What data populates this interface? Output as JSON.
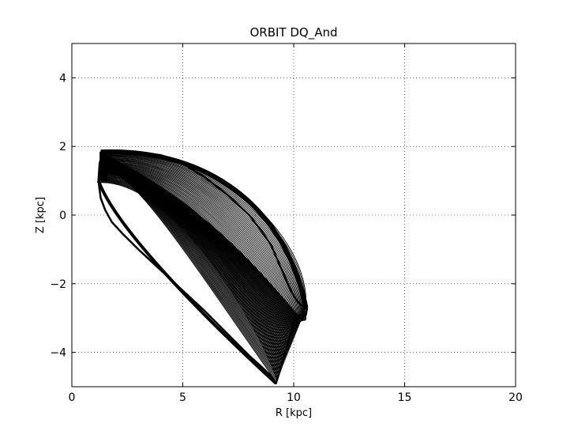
{
  "chart_data": {
    "type": "line",
    "title": "ORBIT DQ_And",
    "xlabel": "R [kpc]",
    "ylabel": "Z [kpc]",
    "xlim": [
      0,
      20
    ],
    "ylim": [
      -5,
      5
    ],
    "xticks": [
      0,
      5,
      10,
      15,
      20
    ],
    "yticks": [
      -4,
      -2,
      0,
      2,
      4
    ],
    "xtick_labels": [
      "0",
      "5",
      "10",
      "15",
      "20"
    ],
    "ytick_labels": [
      "−4",
      "−2",
      "0",
      "2",
      "4"
    ],
    "grid": true,
    "line_color": "#000000",
    "series": [
      {
        "boundary": {
          "x": [
            1.2,
            1.25,
            1.35,
            1.45,
            1.6,
            2.0,
            3.0,
            4.0,
            5.0,
            6.0,
            7.0,
            8.0,
            8.7,
            9.0,
            9.2,
            9.4,
            9.6,
            9.8,
            10.0,
            10.15,
            10.3,
            10.4,
            10.5,
            10.55,
            10.6,
            10.55,
            10.45,
            10.3,
            10.2,
            10.0,
            9.9,
            9.7,
            9.5,
            9.3,
            9.2,
            9.15,
            9.0,
            8.6,
            8.0,
            7.0,
            6.0,
            5.0,
            4.0,
            3.0,
            2.3,
            1.8,
            1.5,
            1.3,
            1.2
          ],
          "y": [
            1.0,
            1.5,
            1.75,
            1.82,
            1.85,
            1.85,
            1.82,
            1.75,
            1.5,
            1.1,
            0.6,
            0.0,
            -0.6,
            -0.9,
            -1.2,
            -1.5,
            -1.8,
            -2.1,
            -2.35,
            -2.5,
            -2.6,
            -2.65,
            -2.7,
            -2.72,
            -2.72,
            -2.9,
            -2.95,
            -2.9,
            -2.92,
            -3.1,
            -3.4,
            -3.8,
            -4.3,
            -4.7,
            -4.9,
            -4.85,
            -4.7,
            -4.45,
            -4.1,
            -3.45,
            -2.8,
            -2.2,
            -1.6,
            -1.0,
            -0.55,
            -0.2,
            0.15,
            0.5,
            1.0
          ]
        }
      }
    ]
  }
}
